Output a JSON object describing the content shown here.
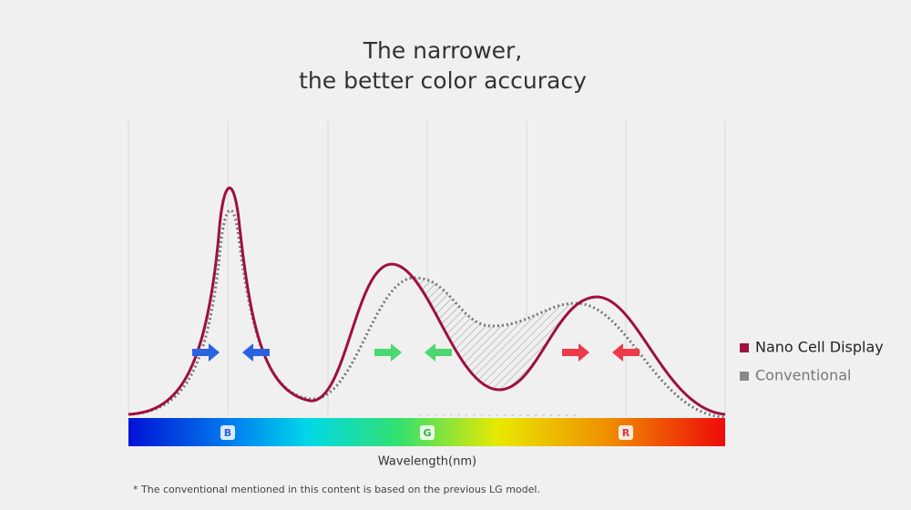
{
  "header": {
    "title_lines": [
      "The narrower,",
      "the better color accuracy"
    ]
  },
  "spectrum": {
    "labels": [
      "B",
      "G",
      "R"
    ],
    "axis_label": "Wavelength(nm)"
  },
  "legend": {
    "items": [
      "Nano Cell Display",
      "Conventional"
    ]
  },
  "footnote": "* The conventional mentioned in this content is based on the previous LG model."
}
